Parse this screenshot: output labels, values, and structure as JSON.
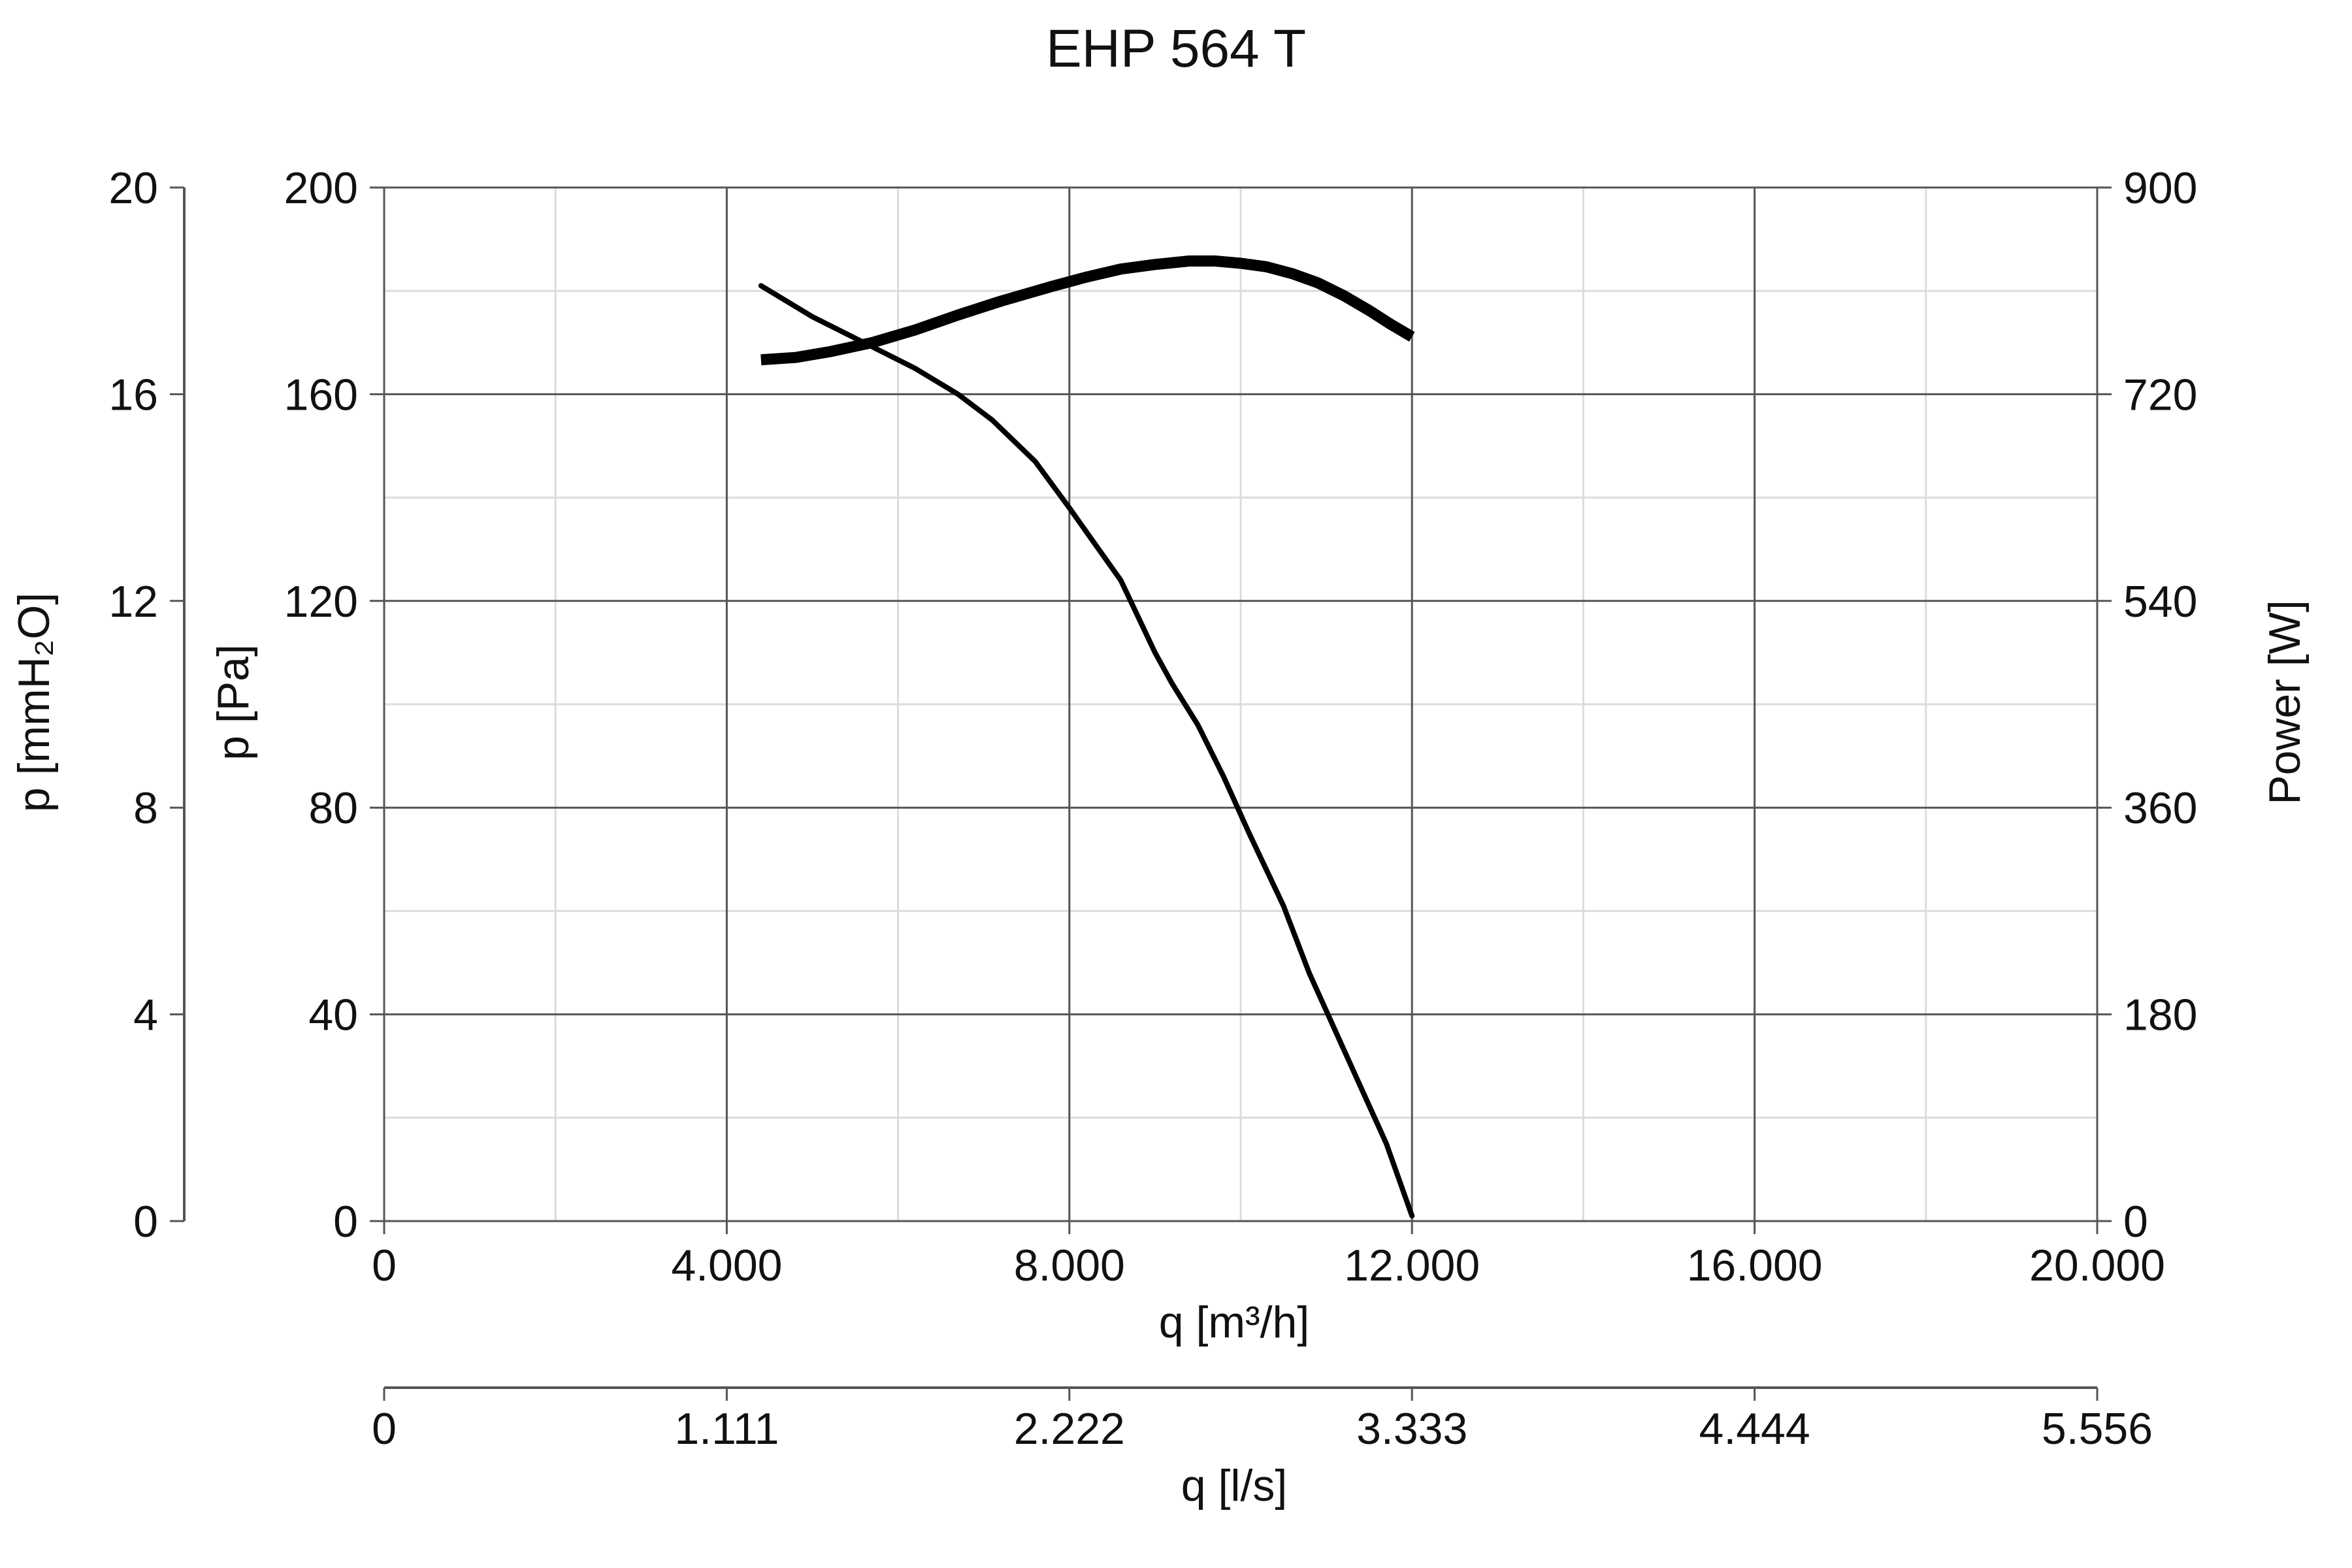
{
  "chart_data": {
    "type": "line",
    "title": "EHP 564 T",
    "xlabel": "q [m³/h]",
    "xlabel_secondary": "q [l/s]",
    "ylabel": "p [Pa]",
    "ylabel_secondary": "p [mmH₂O]",
    "ylabel_right": "Power [W]",
    "xlim": [
      0,
      20000
    ],
    "ylim": [
      0,
      200
    ],
    "ylim_secondary": [
      0,
      20
    ],
    "ylim_right": [
      0,
      900
    ],
    "grid": true,
    "legend": "none",
    "x_ticks": [
      "0",
      "4.000",
      "8.000",
      "12.000",
      "16.000",
      "20.000"
    ],
    "x_ticks_secondary": [
      "0",
      "1.111",
      "2.222",
      "3.333",
      "4.444",
      "5.556"
    ],
    "y_ticks": [
      "0",
      "40",
      "80",
      "120",
      "160",
      "200"
    ],
    "y_ticks_secondary": [
      "0",
      "4",
      "8",
      "12",
      "16",
      "20"
    ],
    "y_ticks_right": [
      "0",
      "180",
      "360",
      "540",
      "720",
      "900"
    ],
    "series": [
      {
        "axis": "left",
        "x": [
          4400,
          5000,
          5600,
          6200,
          6700,
          7100,
          7600,
          8000,
          8300,
          8600,
          8800,
          9000,
          9200,
          9500,
          9800,
          10100,
          10500,
          10800,
          11100,
          11400,
          11700,
          12000
        ],
        "y": [
          181,
          175,
          170,
          165,
          160,
          155,
          147,
          138,
          131,
          124,
          117,
          110,
          104,
          96,
          86,
          75,
          61,
          48,
          37,
          26,
          15,
          1
        ]
      },
      {
        "axis": "right",
        "x": [
          4400,
          4800,
          5200,
          5700,
          6200,
          6700,
          7200,
          7800,
          8200,
          8600,
          9000,
          9400,
          9700,
          10000,
          10300,
          10600,
          10900,
          11200,
          11500,
          11750,
          12000
        ],
        "y": [
          750,
          752,
          757,
          765,
          776,
          789,
          801,
          814,
          822,
          829,
          833,
          836,
          836,
          834,
          831,
          825,
          817,
          806,
          793,
          781,
          770
        ]
      }
    ]
  }
}
